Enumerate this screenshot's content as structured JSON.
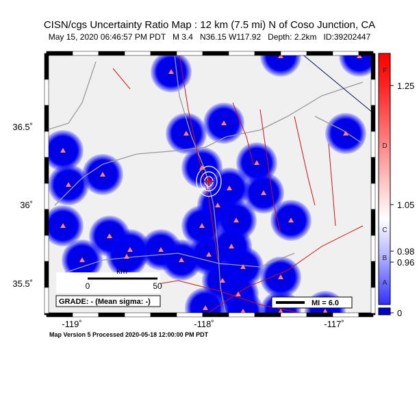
{
  "header": {
    "title": "CISN/cgs Uncertainty Ratio Map : 12 km (7.5 mi) N of Coso Junction, CA",
    "subtitle": "May 15, 2020 06:46:57 PM PDT   M 3.4   N36.15 W117.92   Depth: 2.2km   ID:39202447"
  },
  "axes": {
    "latitude_labels": [
      "36.5˚",
      "36˚",
      "35.5˚"
    ],
    "longitude_labels": [
      "-119˚",
      "-118˚",
      "-117˚"
    ]
  },
  "colorbar": {
    "letters": [
      "F",
      "D",
      "C",
      "B",
      "A"
    ],
    "labels": [
      "1.25",
      "1.05",
      "0.98",
      "0.96",
      "0"
    ]
  },
  "scale_bar": {
    "unit": "km",
    "start": "0",
    "end": "50"
  },
  "grade": "GRADE: - (Mean sigma: -)",
  "intensity_legend": "MI = 6.0",
  "footer": "Map Version 5 Processed 2020-05-18 12:00:00 PM PDT"
}
